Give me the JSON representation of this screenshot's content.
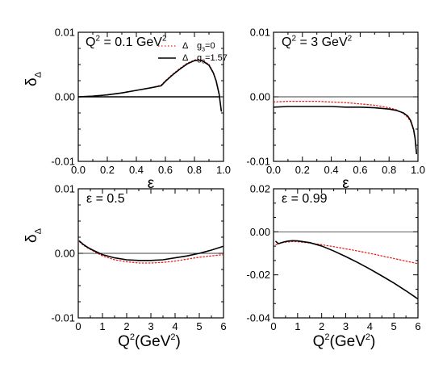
{
  "chart_data": [
    {
      "type": "line",
      "panel": "top-left",
      "annotation": {
        "base": "Q",
        "sup": "2",
        "rest": " = 0.1 GeV",
        "sup2": "2"
      },
      "xlabel": "ε",
      "ylabel": {
        "base": "δ",
        "sub": "Δ"
      },
      "xlim": [
        0.0,
        1.0
      ],
      "ylim": [
        -0.01,
        0.01
      ],
      "xticks": [
        "0.0",
        "0.2",
        "0.4",
        "0.6",
        "0.8",
        "1.0"
      ],
      "yticks": [
        "-0.01",
        "0.00",
        "0.01"
      ],
      "legend": {
        "position": "top-right",
        "entries": [
          {
            "symbol": "Δ",
            "label_base": "g",
            "label_sub": "3",
            "label_rest": "=0",
            "style": "dotted",
            "color": "#e8231e"
          },
          {
            "symbol": "Δ",
            "label_base": "g",
            "label_sub": "3",
            "label_rest": "=1.57",
            "style": "solid",
            "color": "#000000"
          }
        ]
      },
      "series": [
        {
          "style": "dotted",
          "color": "#e8231e",
          "x": [
            0.0,
            0.1,
            0.2,
            0.3,
            0.4,
            0.5,
            0.57,
            0.6,
            0.65,
            0.7,
            0.75,
            0.8,
            0.83,
            0.86,
            0.9,
            0.93,
            0.95,
            0.97,
            0.985
          ],
          "y": [
            0.0,
            0.0001,
            0.0003,
            0.0006,
            0.001,
            0.0014,
            0.0018,
            0.0025,
            0.0035,
            0.0044,
            0.0052,
            0.0057,
            0.0058,
            0.0056,
            0.005,
            0.0038,
            0.0025,
            0.0005,
            -0.0022
          ]
        },
        {
          "style": "solid",
          "color": "#000000",
          "x": [
            0.0,
            0.1,
            0.2,
            0.3,
            0.4,
            0.5,
            0.57,
            0.6,
            0.65,
            0.7,
            0.75,
            0.8,
            0.83,
            0.86,
            0.9,
            0.93,
            0.95,
            0.97,
            0.985
          ],
          "y": [
            0.0,
            0.0001,
            0.0003,
            0.0006,
            0.001,
            0.0014,
            0.0017,
            0.0024,
            0.0034,
            0.0043,
            0.0051,
            0.0056,
            0.0057,
            0.0055,
            0.0049,
            0.0037,
            0.0024,
            0.0004,
            -0.0022
          ]
        },
        {
          "style": "solid",
          "color": "#000000",
          "x": [
            0.0,
            0.97
          ],
          "y": [
            0.0,
            0.0
          ]
        }
      ]
    },
    {
      "type": "line",
      "panel": "top-right",
      "annotation": {
        "base": "Q",
        "sup": "2",
        "rest": " = 3 GeV",
        "sup2": "2"
      },
      "xlabel": "ε",
      "xlim": [
        0.0,
        1.0
      ],
      "ylim": [
        -0.01,
        0.01
      ],
      "xticks": [
        "0.0",
        "0.2",
        "0.4",
        "0.6",
        "0.8",
        "1.0"
      ],
      "yticks": [
        "-0.01",
        "0.00",
        "0.01"
      ],
      "series": [
        {
          "style": "dotted",
          "color": "#e8231e",
          "x": [
            0.0,
            0.1,
            0.2,
            0.3,
            0.4,
            0.5,
            0.6,
            0.7,
            0.8,
            0.85,
            0.9,
            0.93,
            0.95,
            0.97,
            0.98,
            0.99
          ],
          "y": [
            -0.0008,
            -0.0007,
            -0.0007,
            -0.0007,
            -0.0008,
            -0.0009,
            -0.0011,
            -0.0013,
            -0.0017,
            -0.002,
            -0.0026,
            -0.0032,
            -0.0039,
            -0.0052,
            -0.0065,
            -0.0083
          ]
        },
        {
          "style": "solid",
          "color": "#000000",
          "x": [
            0.0,
            0.1,
            0.2,
            0.3,
            0.4,
            0.5,
            0.6,
            0.7,
            0.8,
            0.85,
            0.9,
            0.93,
            0.95,
            0.97,
            0.98,
            0.99
          ],
          "y": [
            -0.0016,
            -0.0015,
            -0.0015,
            -0.0015,
            -0.0015,
            -0.0016,
            -0.0016,
            -0.0017,
            -0.0019,
            -0.0021,
            -0.0025,
            -0.003,
            -0.0037,
            -0.0051,
            -0.0064,
            -0.0088
          ]
        },
        {
          "style": "thin",
          "color": "#000000",
          "x": [
            0.0,
            1.0
          ],
          "y": [
            0.0,
            0.0
          ]
        }
      ]
    },
    {
      "type": "line",
      "panel": "bottom-left",
      "annotation": {
        "base": "ε = 0.5"
      },
      "xlabel": {
        "base": "Q",
        "sup": "2",
        "rest": "(GeV",
        "sup2": "2",
        "end": ")"
      },
      "ylabel": {
        "base": "δ",
        "sub": "Δ"
      },
      "xlim": [
        0,
        6
      ],
      "ylim": [
        -0.01,
        0.01
      ],
      "xticks": [
        "0",
        "1",
        "2",
        "3",
        "4",
        "5",
        "6"
      ],
      "yticks": [
        "-0.01",
        "0.00",
        "0.01"
      ],
      "series": [
        {
          "style": "dotted",
          "color": "#e8231e",
          "x": [
            0.05,
            0.2,
            0.4,
            0.6,
            1.0,
            1.5,
            2.0,
            2.5,
            3.0,
            3.5,
            4.0,
            4.5,
            5.0,
            5.5,
            6.0
          ],
          "y": [
            0.0018,
            0.0013,
            0.0008,
            0.0004,
            -0.0004,
            -0.001,
            -0.0013,
            -0.0015,
            -0.0015,
            -0.0014,
            -0.0012,
            -0.0009,
            -0.0006,
            -0.0004,
            -0.0002
          ]
        },
        {
          "style": "solid",
          "color": "#000000",
          "x": [
            0.05,
            0.2,
            0.4,
            0.6,
            1.0,
            1.5,
            2.0,
            2.5,
            3.0,
            3.5,
            4.0,
            4.5,
            5.0,
            5.5,
            6.0
          ],
          "y": [
            0.0019,
            0.0014,
            0.0009,
            0.0005,
            -0.0002,
            -0.0007,
            -0.001,
            -0.0011,
            -0.0011,
            -0.001,
            -0.0007,
            -0.0004,
            0.0,
            0.0005,
            0.0011
          ]
        },
        {
          "style": "thin",
          "color": "#000000",
          "x": [
            0,
            6
          ],
          "y": [
            0.0,
            0.0
          ]
        }
      ]
    },
    {
      "type": "line",
      "panel": "bottom-right",
      "annotation": {
        "base": "ε = 0.99"
      },
      "xlabel": {
        "base": "Q",
        "sup": "2",
        "rest": "(GeV",
        "sup2": "2",
        "end": ")"
      },
      "xlim": [
        0,
        6
      ],
      "ylim": [
        -0.04,
        0.02
      ],
      "xticks": [
        "0",
        "1",
        "2",
        "3",
        "4",
        "5",
        "6"
      ],
      "yticks": [
        "-0.04",
        "-0.02",
        "0.00",
        "0.02"
      ],
      "series": [
        {
          "style": "dotted",
          "color": "#e8231e",
          "x": [
            0.1,
            0.3,
            0.5,
            0.8,
            1.0,
            1.5,
            2.0,
            2.5,
            3.0,
            3.5,
            4.0,
            4.5,
            5.0,
            5.5,
            6.0
          ],
          "y": [
            -0.006,
            -0.0052,
            -0.0048,
            -0.0045,
            -0.0046,
            -0.0052,
            -0.006,
            -0.0069,
            -0.0079,
            -0.0089,
            -0.01,
            -0.0112,
            -0.0124,
            -0.0136,
            -0.0148
          ]
        },
        {
          "style": "solid",
          "color": "#000000",
          "x": [
            0.1,
            0.2,
            0.4,
            0.6,
            0.8,
            1.0,
            1.5,
            2.0,
            2.5,
            3.0,
            3.5,
            4.0,
            4.5,
            5.0,
            5.5,
            6.0
          ],
          "y": [
            -0.0045,
            -0.0055,
            -0.0048,
            -0.0043,
            -0.0041,
            -0.0042,
            -0.005,
            -0.0066,
            -0.0089,
            -0.0115,
            -0.0143,
            -0.0173,
            -0.0205,
            -0.0238,
            -0.0274,
            -0.0312
          ]
        },
        {
          "style": "thin",
          "color": "#000000",
          "x": [
            0,
            6
          ],
          "y": [
            0.0,
            0.0
          ]
        }
      ]
    }
  ]
}
